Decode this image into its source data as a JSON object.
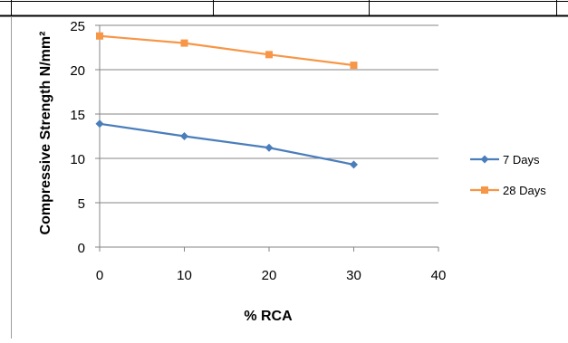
{
  "chart_data": {
    "type": "line",
    "xlabel": "% RCA",
    "ylabel": "Compressive Strength N/mm²",
    "xlim": [
      0,
      40
    ],
    "ylim": [
      0,
      25
    ],
    "xticks": [
      0,
      10,
      20,
      30,
      40
    ],
    "yticks": [
      0,
      5,
      10,
      15,
      20,
      25
    ],
    "grid": "horizontal",
    "legend_position": "right",
    "series": [
      {
        "name": "7 Days",
        "color": "#4a7ebb",
        "marker": "diamond",
        "x": [
          0,
          10,
          20,
          30
        ],
        "y": [
          13.9,
          12.5,
          11.2,
          9.3
        ]
      },
      {
        "name": "28 Days",
        "color": "#f79646",
        "marker": "square",
        "x": [
          0,
          10,
          20,
          30
        ],
        "y": [
          23.8,
          23.0,
          21.7,
          20.5
        ]
      }
    ]
  }
}
